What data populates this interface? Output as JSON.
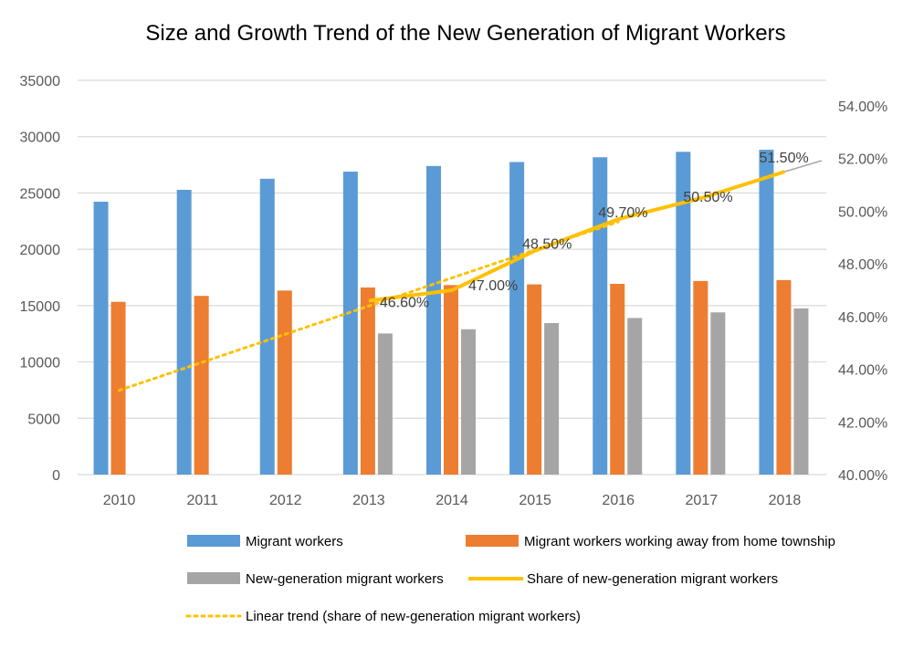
{
  "chart_data": {
    "type": "bar",
    "title": "Size and Growth Trend of the New Generation of Migrant Workers",
    "categories": [
      "2010",
      "2011",
      "2012",
      "2013",
      "2014",
      "2015",
      "2016",
      "2017",
      "2018"
    ],
    "y_left": {
      "min": 0,
      "max": 35000,
      "ticks": [
        "0",
        "5000",
        "10000",
        "15000",
        "20000",
        "25000",
        "30000",
        "35000"
      ]
    },
    "y_right": {
      "min": 40,
      "max": 54,
      "ticks": [
        "40.00%",
        "42.00%",
        "44.00%",
        "46.00%",
        "48.00%",
        "50.00%",
        "52.00%",
        "54.00%"
      ]
    },
    "grid": true,
    "legend_position": "bottom",
    "series": [
      {
        "name": "Migrant workers",
        "type": "bar",
        "color": "#5B9BD5",
        "values": [
          24223,
          25278,
          26261,
          26894,
          27395,
          27747,
          28171,
          28652,
          28836
        ]
      },
      {
        "name": "Migrant workers working away from home township",
        "type": "bar",
        "color": "#ED7D31",
        "values": [
          15335,
          15863,
          16336,
          16610,
          16821,
          16884,
          16934,
          17185,
          17266
        ]
      },
      {
        "name": "New-generation migrant workers",
        "type": "bar",
        "color": "#A5A5A5",
        "values": [
          null,
          null,
          null,
          12528,
          12900,
          13450,
          13900,
          14400,
          14750
        ]
      },
      {
        "name": "Share of new-generation migrant workers",
        "type": "line",
        "axis": "right",
        "color": "#FFC000",
        "values": [
          null,
          null,
          null,
          46.6,
          47.0,
          48.5,
          49.7,
          50.5,
          51.5
        ],
        "labels": [
          null,
          null,
          null,
          "46.60%",
          "47.00%",
          "48.50%",
          "49.70%",
          "50.50%",
          "51.50%"
        ]
      },
      {
        "name": "Linear trend (share of new-generation migrant workers)",
        "type": "trendline",
        "axis": "right",
        "color": "#FFC000",
        "start": {
          "x": "2010",
          "y": 43.2
        },
        "end": {
          "x": "2016",
          "y": 49.6
        }
      }
    ]
  }
}
